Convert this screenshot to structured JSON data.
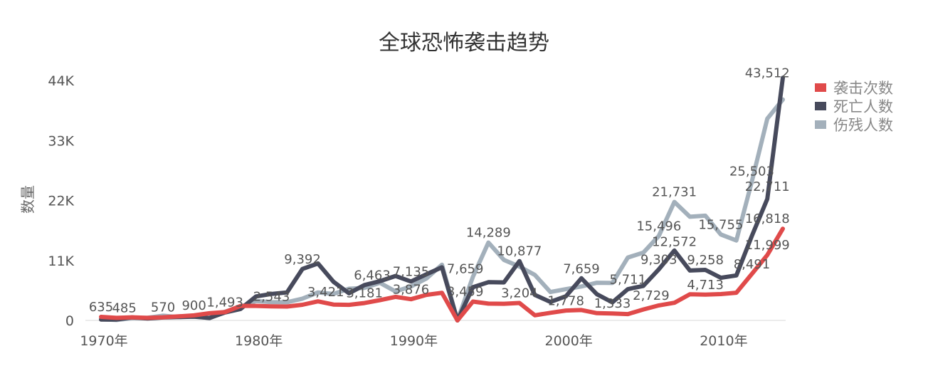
{
  "chart_data": {
    "type": "line",
    "title": "全球恐怖袭击趋势",
    "xlabel": "",
    "ylabel": "数量",
    "x": [
      1970,
      1971,
      1972,
      1973,
      1974,
      1975,
      1976,
      1977,
      1978,
      1979,
      1980,
      1981,
      1982,
      1983,
      1984,
      1985,
      1986,
      1987,
      1988,
      1989,
      1990,
      1991,
      1992,
      1993,
      1994,
      1995,
      1996,
      1997,
      1998,
      1999,
      2000,
      2001,
      2002,
      2003,
      2004,
      2005,
      2006,
      2007,
      2008,
      2009,
      2010,
      2011,
      2012,
      2013,
      2014
    ],
    "xlim": [
      1970,
      2014
    ],
    "ylim": [
      0,
      44000
    ],
    "x_ticks": [
      1970,
      1980,
      1990,
      2000,
      2010
    ],
    "x_tick_labels": [
      "1970年",
      "1980年",
      "1990年",
      "2000年",
      "2010年"
    ],
    "y_ticks": [
      0,
      11000,
      22000,
      33000,
      44000
    ],
    "y_tick_labels": [
      "0",
      "11K",
      "22K",
      "33K",
      "44K"
    ],
    "grid": false,
    "legend_position": "top-right",
    "series": [
      {
        "name": "袭击次数",
        "color": "#E04A4A",
        "values": [
          651,
          471,
          568,
          473,
          581,
          740,
          923,
          1319,
          1526,
          2662,
          2662,
          2586,
          2544,
          2870,
          3495,
          2915,
          2860,
          3183,
          3721,
          4324,
          3887,
          4683,
          5071,
          0,
          3456,
          3081,
          3058,
          3197,
          934,
          1395,
          1814,
          1906,
          1333,
          1278,
          1166,
          2017,
          2758,
          3242,
          4805,
          4721,
          4826,
          5076,
          8522,
          11999,
          16818
        ]
      },
      {
        "name": "死亡人数",
        "color": "#474A5C",
        "values": [
          174,
          173,
          566,
          370,
          539,
          617,
          674,
          453,
          1459,
          2100,
          4400,
          4851,
          5136,
          9444,
          10450,
          7094,
          4976,
          6483,
          7189,
          8152,
          7148,
          8466,
          9740,
          0,
          6090,
          7014,
          6966,
          10877,
          4670,
          3393,
          4422,
          7729,
          4805,
          3317,
          5743,
          6331,
          9380,
          12824,
          9157,
          9273,
          7827,
          8246,
          15497,
          22273,
          44490
        ]
      },
      {
        "name": "伤残人数",
        "color": "#A3B0BB",
        "values": [
          212,
          82,
          409,
          495,
          865,
          617,
          773,
          419,
          1600,
          2500,
          3560,
          3351,
          3336,
          3997,
          5136,
          4862,
          5814,
          5965,
          6890,
          5331,
          6221,
          7690,
          10220,
          0,
          7993,
          14289,
          11094,
          9876,
          8340,
          5215,
          5738,
          6228,
          6903,
          6862,
          11540,
          12436,
          15496,
          21731,
          19008,
          19200,
          15755,
          14659,
          25503,
          37000,
          40500
        ]
      }
    ],
    "annotations": [
      {
        "text": "635",
        "x": 1970,
        "y": 635
      },
      {
        "text": "485",
        "x": 1971.5,
        "y": 485
      },
      {
        "text": "570",
        "x": 1974,
        "y": 570
      },
      {
        "text": "900",
        "x": 1976,
        "y": 900
      },
      {
        "text": "1,493",
        "x": 1978,
        "y": 1493
      },
      {
        "text": "2,543",
        "x": 1981,
        "y": 2543
      },
      {
        "text": "9,392",
        "x": 1983,
        "y": 9392
      },
      {
        "text": "3,421",
        "x": 1984.5,
        "y": 3421
      },
      {
        "text": "3,181",
        "x": 1987,
        "y": 3181
      },
      {
        "text": "6,463",
        "x": 1987.5,
        "y": 6463
      },
      {
        "text": "7,135",
        "x": 1990,
        "y": 7135
      },
      {
        "text": "3,876",
        "x": 1990,
        "y": 3876
      },
      {
        "text": "14,289",
        "x": 1995,
        "y": 14289
      },
      {
        "text": "7,659",
        "x": 1993.5,
        "y": 7659
      },
      {
        "text": "3,459",
        "x": 1993.5,
        "y": 3459
      },
      {
        "text": "10,877",
        "x": 1997,
        "y": 10877
      },
      {
        "text": "3,204",
        "x": 1997,
        "y": 3204
      },
      {
        "text": "1,778",
        "x": 2000,
        "y": 1778
      },
      {
        "text": "7,659",
        "x": 2001,
        "y": 7659
      },
      {
        "text": "1,333",
        "x": 2003,
        "y": 1333
      },
      {
        "text": "5,711",
        "x": 2004,
        "y": 5711
      },
      {
        "text": "2,729",
        "x": 2005.5,
        "y": 2729
      },
      {
        "text": "9,303",
        "x": 2006,
        "y": 9303
      },
      {
        "text": "15,496",
        "x": 2006,
        "y": 15496
      },
      {
        "text": "21,731",
        "x": 2007,
        "y": 21731
      },
      {
        "text": "12,572",
        "x": 2007,
        "y": 12572
      },
      {
        "text": "4,713",
        "x": 2009,
        "y": 4713
      },
      {
        "text": "9,258",
        "x": 2009,
        "y": 9258
      },
      {
        "text": "15,755",
        "x": 2010,
        "y": 15755
      },
      {
        "text": "8,491",
        "x": 2012,
        "y": 8491
      },
      {
        "text": "25,503",
        "x": 2012,
        "y": 25503
      },
      {
        "text": "22,711",
        "x": 2013,
        "y": 22711
      },
      {
        "text": "16,818",
        "x": 2013,
        "y": 16818
      },
      {
        "text": "11,999",
        "x": 2013,
        "y": 11999
      },
      {
        "text": "43,512",
        "x": 2013,
        "y": 43512
      }
    ]
  }
}
